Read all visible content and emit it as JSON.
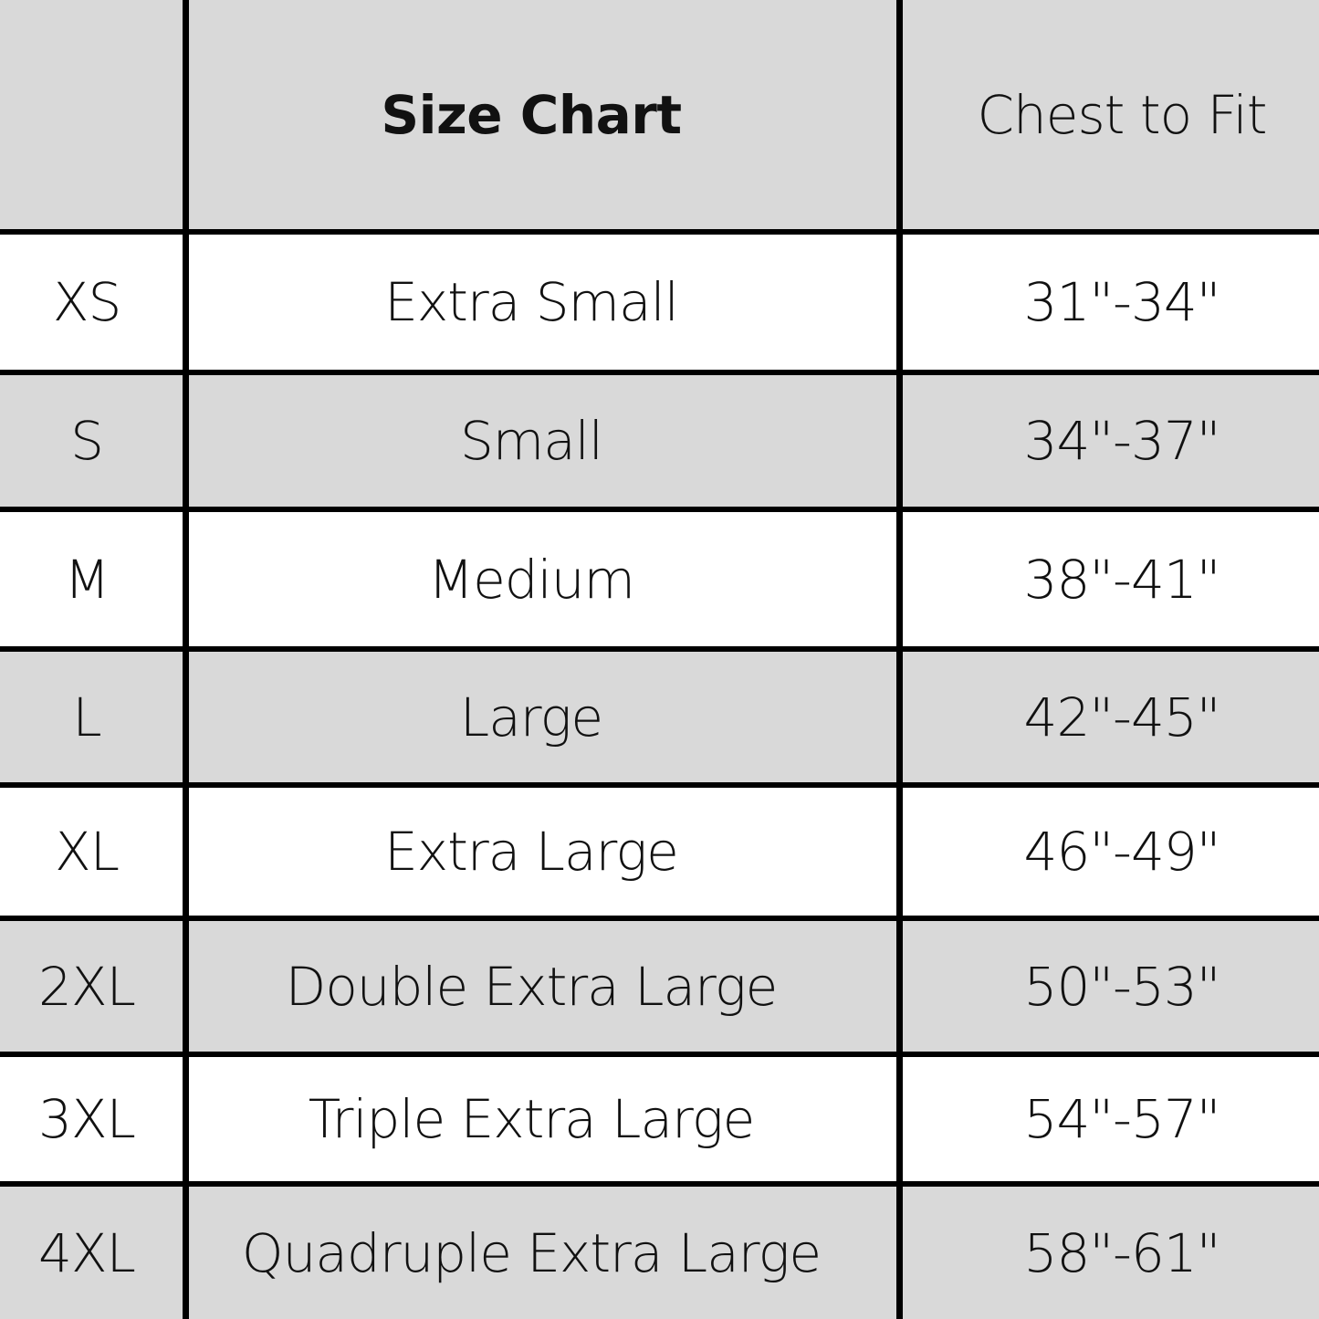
{
  "header": {
    "size": "",
    "title": "Size Chart",
    "chest": "Chest to Fit"
  },
  "rows": [
    {
      "code": "XS",
      "name": "Extra Small",
      "chest": "31\"-34\""
    },
    {
      "code": "S",
      "name": "Small",
      "chest": "34\"-37\""
    },
    {
      "code": "M",
      "name": "Medium",
      "chest": "38\"-41\""
    },
    {
      "code": "L",
      "name": "Large",
      "chest": "42\"-45\""
    },
    {
      "code": "XL",
      "name": "Extra Large",
      "chest": "46\"-49\""
    },
    {
      "code": "2XL",
      "name": "Double Extra Large",
      "chest": "50\"-53\""
    },
    {
      "code": "3XL",
      "name": "Triple Extra Large",
      "chest": "54\"-57\""
    },
    {
      "code": "4XL",
      "name": "Quadruple Extra Large",
      "chest": "58\"-61\""
    }
  ],
  "colors": {
    "shaded_row": "#d9d9d9",
    "plain_row": "#ffffff",
    "rule": "#000000"
  }
}
